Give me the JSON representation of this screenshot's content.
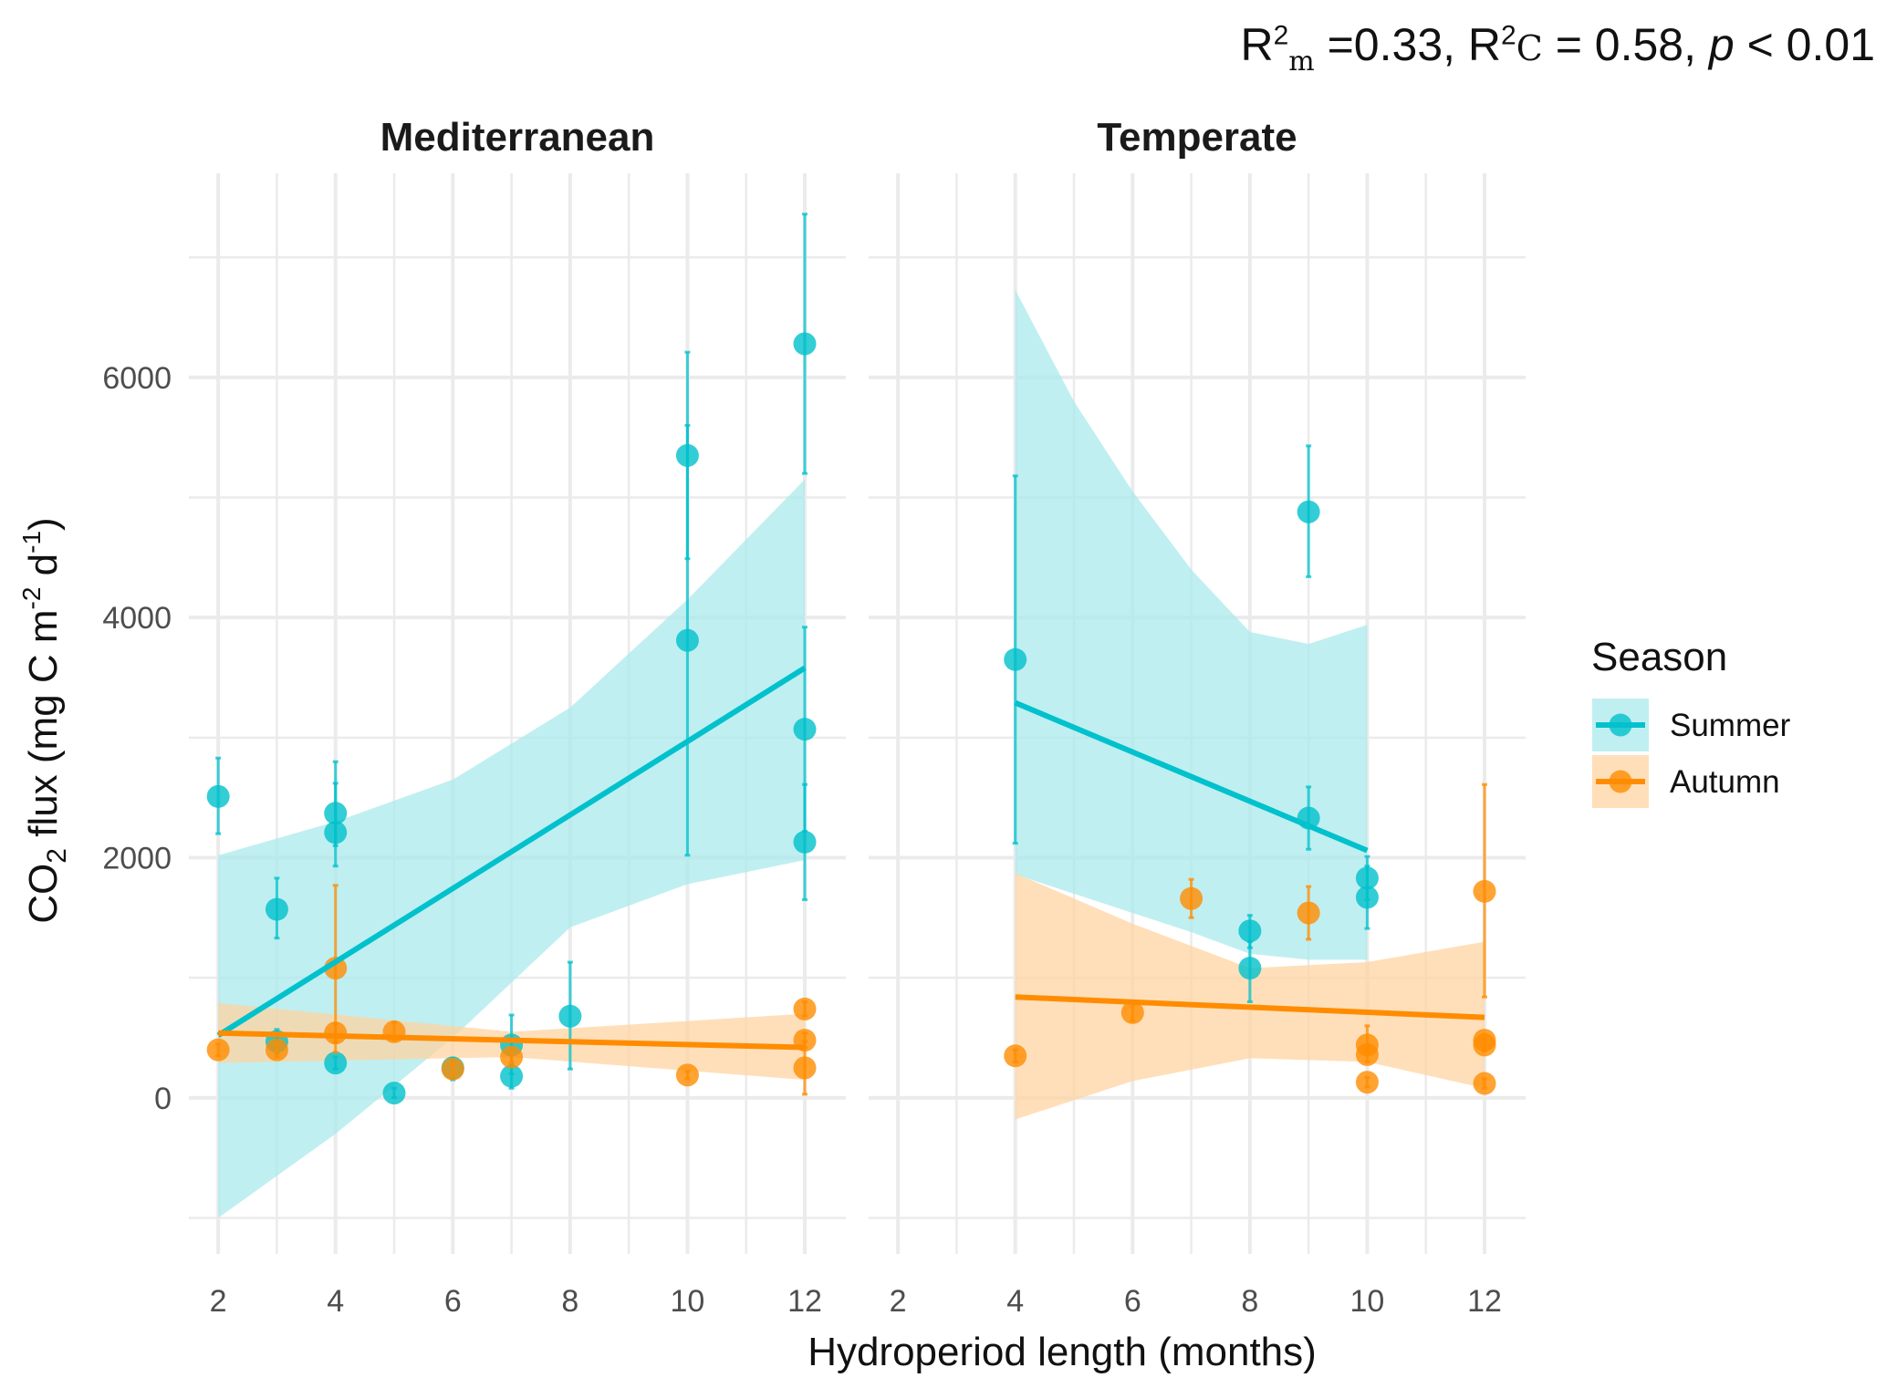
{
  "stats": {
    "r2m_label": "R",
    "r2m_sup": "2",
    "r2m_sub": "m",
    "r2m_value": " =0.33, ",
    "r2c_label": "R",
    "r2c_sup": "2",
    "r2c_sub": "C",
    "r2c_value": " = 0.58, ",
    "p_label": "p",
    "p_value": " < 0.01"
  },
  "chart_data": {
    "type": "scatter",
    "xlabel": "Hydroperiod length (months)",
    "ylabel_parts": {
      "a": "CO",
      "b": "2",
      "c": " flux (mg C m",
      "d": "-2",
      "e": " d",
      "f": "-1",
      "g": ")"
    },
    "xlim": [
      1.5,
      12.7
    ],
    "ylim": [
      -1300,
      7700
    ],
    "x_ticks": [
      2,
      4,
      6,
      8,
      10,
      12
    ],
    "x_tick_labels": [
      "2",
      "4",
      "6",
      "8",
      "10",
      "12"
    ],
    "y_ticks": [
      0,
      2000,
      4000,
      6000
    ],
    "y_tick_labels": [
      "0",
      "2000",
      "4000",
      "6000"
    ],
    "grid": true,
    "legend": {
      "title": "Season",
      "position": "right",
      "items": [
        {
          "name": "Summer",
          "color": "#00C1CC",
          "fill": "#A8E9EC"
        },
        {
          "name": "Autumn",
          "color": "#FF8C00",
          "fill": "#FFD39E"
        }
      ]
    },
    "colors": {
      "summer": "#00C1CC",
      "autumn": "#FF8C00",
      "grid": "#EBEBEB"
    },
    "panels": [
      {
        "title": "Mediterranean",
        "series": [
          {
            "name": "Summer",
            "points": [
              {
                "x": 2,
                "y": 2510,
                "lo": 2200,
                "hi": 2830
              },
              {
                "x": 3,
                "y": 1570,
                "lo": 1330,
                "hi": 1830
              },
              {
                "x": 3,
                "y": 470,
                "lo": 370,
                "hi": 570
              },
              {
                "x": 4,
                "y": 2370,
                "lo": 2100,
                "hi": 2800
              },
              {
                "x": 4,
                "y": 2210,
                "lo": 1930,
                "hi": 2620
              },
              {
                "x": 4,
                "y": 290,
                "lo": 240,
                "hi": 340
              },
              {
                "x": 5,
                "y": 40,
                "lo": 0,
                "hi": 80
              },
              {
                "x": 6,
                "y": 250,
                "lo": 150,
                "hi": 330
              },
              {
                "x": 7,
                "y": 440,
                "lo": 200,
                "hi": 690
              },
              {
                "x": 7,
                "y": 180,
                "lo": 80,
                "hi": 280
              },
              {
                "x": 8,
                "y": 680,
                "lo": 240,
                "hi": 1130
              },
              {
                "x": 10,
                "y": 5350,
                "lo": 4490,
                "hi": 6210
              },
              {
                "x": 10,
                "y": 3810,
                "lo": 2020,
                "hi": 5600
              },
              {
                "x": 12,
                "y": 6280,
                "lo": 5200,
                "hi": 7360
              },
              {
                "x": 12,
                "y": 3070,
                "lo": 2220,
                "hi": 3920
              },
              {
                "x": 12,
                "y": 2130,
                "lo": 1650,
                "hi": 2610
              }
            ],
            "fit": {
              "x": [
                2,
                12
              ],
              "y": [
                520,
                3580
              ]
            },
            "band": {
              "x": [
                2,
                4,
                6,
                8,
                10,
                12
              ],
              "lo": [
                -1000,
                -300,
                500,
                1420,
                1780,
                1980
              ],
              "hi": [
                2020,
                2300,
                2650,
                3250,
                4150,
                5150
              ]
            }
          },
          {
            "name": "Autumn",
            "points": [
              {
                "x": 2,
                "y": 400,
                "lo": 350,
                "hi": 450
              },
              {
                "x": 3,
                "y": 400,
                "lo": 340,
                "hi": 460
              },
              {
                "x": 4,
                "y": 1080,
                "lo": 380,
                "hi": 1770
              },
              {
                "x": 4,
                "y": 540,
                "lo": 460,
                "hi": 620
              },
              {
                "x": 5,
                "y": 550,
                "lo": 480,
                "hi": 630
              },
              {
                "x": 6,
                "y": 240,
                "lo": 190,
                "hi": 290
              },
              {
                "x": 7,
                "y": 340,
                "lo": 290,
                "hi": 390
              },
              {
                "x": 10,
                "y": 190,
                "lo": 160,
                "hi": 220
              },
              {
                "x": 12,
                "y": 740,
                "lo": 680,
                "hi": 800
              },
              {
                "x": 12,
                "y": 480,
                "lo": 420,
                "hi": 540
              },
              {
                "x": 12,
                "y": 250,
                "lo": 30,
                "hi": 470
              }
            ],
            "fit": {
              "x": [
                2,
                12
              ],
              "y": [
                540,
                420
              ]
            },
            "band": {
              "x": [
                2,
                7,
                12
              ],
              "lo": [
                290,
                340,
                150
              ],
              "hi": [
                790,
                550,
                700
              ]
            }
          }
        ]
      },
      {
        "title": "Temperate",
        "series": [
          {
            "name": "Summer",
            "points": [
              {
                "x": 4,
                "y": 3650,
                "lo": 2120,
                "hi": 5180
              },
              {
                "x": 8,
                "y": 1390,
                "lo": 1250,
                "hi": 1520
              },
              {
                "x": 8,
                "y": 1080,
                "lo": 800,
                "hi": 1300
              },
              {
                "x": 9,
                "y": 4880,
                "lo": 4340,
                "hi": 5430
              },
              {
                "x": 9,
                "y": 2330,
                "lo": 2070,
                "hi": 2590
              },
              {
                "x": 10,
                "y": 1830,
                "lo": 1650,
                "hi": 2010
              },
              {
                "x": 10,
                "y": 1670,
                "lo": 1410,
                "hi": 1930
              }
            ],
            "fit": {
              "x": [
                4,
                10
              ],
              "y": [
                3290,
                2060
              ]
            },
            "band": {
              "x": [
                4,
                5,
                6,
                7,
                8,
                9,
                10
              ],
              "lo": [
                1860,
                1700,
                1540,
                1380,
                1200,
                1150,
                1150
              ],
              "hi": [
                6730,
                5800,
                5050,
                4400,
                3880,
                3780,
                3940
              ]
            }
          },
          {
            "name": "Autumn",
            "points": [
              {
                "x": 4,
                "y": 350,
                "lo": 300,
                "hi": 400
              },
              {
                "x": 6,
                "y": 710,
                "lo": 640,
                "hi": 780
              },
              {
                "x": 7,
                "y": 1660,
                "lo": 1500,
                "hi": 1820
              },
              {
                "x": 9,
                "y": 1540,
                "lo": 1320,
                "hi": 1760
              },
              {
                "x": 10,
                "y": 440,
                "lo": 380,
                "hi": 600
              },
              {
                "x": 10,
                "y": 360,
                "lo": 300,
                "hi": 420
              },
              {
                "x": 10,
                "y": 130,
                "lo": 90,
                "hi": 170
              },
              {
                "x": 12,
                "y": 1720,
                "lo": 840,
                "hi": 2610
              },
              {
                "x": 12,
                "y": 480,
                "lo": 430,
                "hi": 530
              },
              {
                "x": 12,
                "y": 440,
                "lo": 390,
                "hi": 490
              },
              {
                "x": 12,
                "y": 120,
                "lo": 80,
                "hi": 160
              }
            ],
            "fit": {
              "x": [
                4,
                12
              ],
              "y": [
                840,
                670
              ]
            },
            "band": {
              "x": [
                4,
                6,
                8,
                10,
                12
              ],
              "lo": [
                -180,
                140,
                330,
                300,
                80
              ],
              "hi": [
                1870,
                1450,
                1080,
                1130,
                1300
              ]
            }
          }
        ]
      }
    ]
  }
}
